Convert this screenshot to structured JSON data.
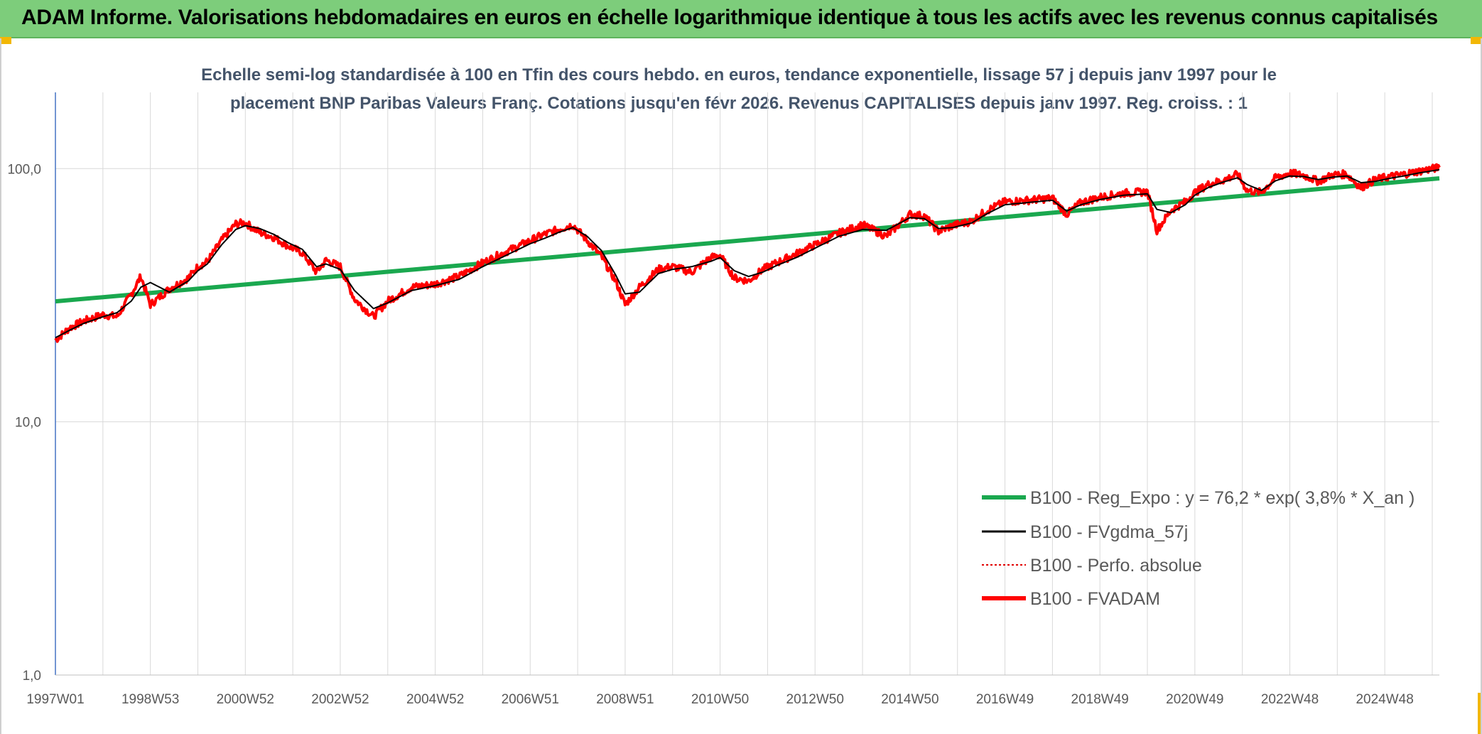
{
  "banner": {
    "title": "ADAM Informe. Valorisations hebdomadaires en euros en échelle logarithmique identique à tous les actifs avec les revenus connus capitalisés"
  },
  "colors": {
    "banner_bg": "#7dcd7b",
    "regression": "#1aa84f",
    "fvgdma": "#000000",
    "perfo": "#e00000",
    "fvadam": "#ff0000",
    "grid": "#d9d9d9",
    "axis_text": "#595959",
    "subtitle": "#44546a"
  },
  "chart_data": {
    "type": "line",
    "title_lines": [
      "Echelle semi-log standardisée à 100 en Tfin des cours hebdo. en euros, tendance exponentielle, lissage 57 j depuis janv 1997 pour le",
      "placement BNP Paribas Valeurs Franç. Cotations jusqu'en févr 2026. Revenus CAPITALISES depuis janv 1997. Reg. croiss. : 1"
    ],
    "y_scale": "log",
    "ylim": [
      1,
      200
    ],
    "y_ticks": [
      "1,0",
      "10,0",
      "100,0"
    ],
    "y_tick_values": [
      1,
      10,
      100
    ],
    "x_range": [
      1997.0,
      2026.15
    ],
    "x_ticks": [
      "1997W01",
      "1998W53",
      "2000W52",
      "2002W52",
      "2004W52",
      "2006W51",
      "2008W51",
      "2010W50",
      "2012W50",
      "2014W50",
      "2016W49",
      "2018W49",
      "2020W49",
      "2022W48",
      "2024W48"
    ],
    "x_tick_values": [
      1997.0,
      1999.0,
      2001.0,
      2003.0,
      2005.0,
      2007.0,
      2009.0,
      2011.0,
      2013.0,
      2015.0,
      2017.0,
      2019.0,
      2021.0,
      2023.0,
      2025.0
    ],
    "grid": true,
    "legend_position": "bottom-right",
    "series": [
      {
        "name": "B100 - Reg_Expo : y = 76,2 * exp( 3,8% *  X_an )",
        "style": "solid-thick",
        "x": [
          1997.0,
          2026.15
        ],
        "y": [
          29.9,
          91.5
        ]
      },
      {
        "name": "B100 - FVgdma_57j",
        "style": "solid-thin",
        "x": [
          1997.0,
          1997.3,
          1997.6,
          1998.0,
          1998.3,
          1998.6,
          1998.8,
          1999.0,
          1999.4,
          1999.8,
          2000.0,
          2000.2,
          2000.5,
          2000.8,
          2001.0,
          2001.3,
          2001.6,
          2001.9,
          2002.2,
          2002.5,
          2002.7,
          2003.0,
          2003.3,
          2003.7,
          2004.0,
          2004.5,
          2005.0,
          2005.5,
          2006.0,
          2006.5,
          2007.0,
          2007.3,
          2007.6,
          2007.9,
          2008.2,
          2008.5,
          2008.8,
          2009.0,
          2009.3,
          2009.7,
          2010.0,
          2010.4,
          2010.8,
          2011.0,
          2011.3,
          2011.6,
          2011.9,
          2012.2,
          2012.6,
          2013.0,
          2013.5,
          2014.0,
          2014.5,
          2015.0,
          2015.3,
          2015.6,
          2015.9,
          2016.3,
          2016.6,
          2017.0,
          2017.5,
          2018.0,
          2018.3,
          2018.6,
          2019.0,
          2019.5,
          2020.0,
          2020.2,
          2020.5,
          2020.8,
          2021.0,
          2021.3,
          2021.6,
          2021.9,
          2022.1,
          2022.4,
          2022.7,
          2023.0,
          2023.3,
          2023.6,
          2023.9,
          2024.2,
          2024.5,
          2024.8,
          2025.1,
          2025.4,
          2025.7,
          2026.15
        ],
        "y": [
          21.5,
          23.0,
          24.5,
          26.0,
          27.0,
          30.0,
          34.0,
          35.5,
          32.5,
          36.0,
          39.5,
          42.0,
          50.0,
          57.5,
          59.5,
          58.0,
          55.0,
          51.0,
          48.0,
          41.0,
          42.0,
          40.0,
          33.0,
          28.0,
          29.5,
          33.0,
          34.5,
          36.5,
          41.0,
          45.5,
          50.5,
          53.0,
          56.0,
          58.5,
          54.0,
          47.5,
          38.0,
          32.0,
          32.5,
          38.5,
          40.0,
          41.0,
          43.0,
          44.5,
          39.5,
          37.5,
          39.0,
          41.5,
          44.5,
          48.5,
          54.0,
          57.5,
          57.0,
          64.0,
          63.5,
          58.0,
          58.5,
          61.0,
          66.0,
          72.0,
          73.5,
          75.0,
          68.0,
          72.0,
          75.5,
          78.5,
          79.5,
          69.0,
          67.0,
          72.0,
          78.5,
          84.5,
          88.5,
          92.0,
          86.5,
          82.0,
          89.5,
          93.5,
          93.0,
          90.5,
          92.5,
          93.5,
          88.0,
          89.0,
          91.5,
          93.5,
          96.0,
          99.0
        ]
      },
      {
        "name": "B100 - Perfo. absolue",
        "style": "dotted"
      },
      {
        "name": "B100 - FVADAM",
        "style": "solid-thick-noisy",
        "x": [
          1997.0,
          1997.3,
          1997.6,
          1998.0,
          1998.3,
          1998.6,
          1998.8,
          1999.0,
          1999.4,
          1999.8,
          2000.0,
          2000.2,
          2000.5,
          2000.8,
          2001.0,
          2001.3,
          2001.6,
          2001.9,
          2002.2,
          2002.5,
          2002.7,
          2003.0,
          2003.3,
          2003.7,
          2004.0,
          2004.5,
          2005.0,
          2005.5,
          2006.0,
          2006.5,
          2007.0,
          2007.3,
          2007.6,
          2007.9,
          2008.2,
          2008.5,
          2008.8,
          2009.0,
          2009.3,
          2009.7,
          2010.0,
          2010.4,
          2010.8,
          2011.0,
          2011.3,
          2011.6,
          2011.9,
          2012.2,
          2012.6,
          2013.0,
          2013.5,
          2014.0,
          2014.5,
          2015.0,
          2015.3,
          2015.6,
          2015.9,
          2016.3,
          2016.6,
          2017.0,
          2017.5,
          2018.0,
          2018.3,
          2018.6,
          2019.0,
          2019.5,
          2020.0,
          2020.2,
          2020.5,
          2020.8,
          2021.0,
          2021.3,
          2021.6,
          2021.9,
          2022.1,
          2022.4,
          2022.7,
          2023.0,
          2023.3,
          2023.6,
          2023.9,
          2024.2,
          2024.5,
          2024.8,
          2025.1,
          2025.4,
          2025.7,
          2026.15
        ],
        "y": [
          21.0,
          23.5,
          25.0,
          26.5,
          26.0,
          32.0,
          37.5,
          29.0,
          33.5,
          37.0,
          41.0,
          43.0,
          52.0,
          60.5,
          61.0,
          56.0,
          53.5,
          49.5,
          46.5,
          39.0,
          43.5,
          41.0,
          30.5,
          26.0,
          30.0,
          34.0,
          35.0,
          37.5,
          42.5,
          47.0,
          52.0,
          55.0,
          57.5,
          60.0,
          52.0,
          45.0,
          36.0,
          29.0,
          34.0,
          40.0,
          41.0,
          39.0,
          44.5,
          45.5,
          37.0,
          36.0,
          40.0,
          42.5,
          46.0,
          50.0,
          55.5,
          60.0,
          54.0,
          66.0,
          65.0,
          56.5,
          59.5,
          62.0,
          68.0,
          74.0,
          75.0,
          76.5,
          66.0,
          73.5,
          77.0,
          80.0,
          81.0,
          57.0,
          68.5,
          74.0,
          80.5,
          87.0,
          90.0,
          95.0,
          82.0,
          80.5,
          92.0,
          96.0,
          94.0,
          89.0,
          94.5,
          95.0,
          84.0,
          90.5,
          93.0,
          95.0,
          97.5,
          101.0
        ]
      }
    ]
  }
}
